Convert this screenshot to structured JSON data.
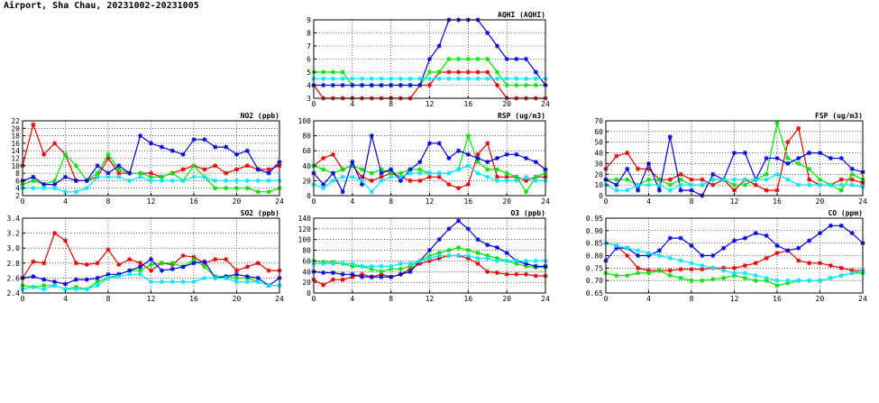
{
  "title": "Airport, Sha Chau, 20231002-20231005",
  "colors": {
    "red": "#e00000",
    "green": "#00e000",
    "blue": "#0000d8",
    "cyan": "#00e6ff"
  },
  "chart_data": [
    {
      "type": "line",
      "title": "AQHI (AQHI)",
      "x": [
        0,
        1,
        2,
        3,
        4,
        5,
        6,
        7,
        8,
        9,
        10,
        11,
        12,
        13,
        14,
        15,
        16,
        17,
        18,
        19,
        20,
        21,
        22,
        23,
        24
      ],
      "xlim": [
        0,
        24
      ],
      "xticks": [
        0,
        4,
        8,
        12,
        16,
        20,
        24
      ],
      "ylim": [
        3,
        9
      ],
      "yticks": [
        3,
        4,
        5,
        6,
        7,
        8,
        9
      ],
      "series": [
        {
          "color": "red",
          "values": [
            4,
            3,
            3,
            3,
            3,
            3,
            3,
            3,
            3,
            3,
            3,
            4,
            4,
            5,
            5,
            5,
            5,
            5,
            5,
            4,
            3,
            3,
            3,
            3,
            3
          ]
        },
        {
          "color": "green",
          "values": [
            5,
            5,
            5,
            5,
            4,
            4,
            4,
            4,
            4,
            4,
            4,
            4,
            5,
            5,
            6,
            6,
            6,
            6,
            6,
            5,
            4,
            4,
            4,
            4,
            4
          ]
        },
        {
          "color": "blue",
          "values": [
            4,
            4,
            4,
            4,
            4,
            4,
            4,
            4,
            4,
            4,
            4,
            4,
            6,
            7,
            9,
            9,
            9,
            9,
            8,
            7,
            6,
            6,
            6,
            5,
            4
          ]
        },
        {
          "color": "cyan",
          "values": [
            4.5,
            4.5,
            4.5,
            4.5,
            4.5,
            4.5,
            4.5,
            4.5,
            4.5,
            4.5,
            4.5,
            4.5,
            4.5,
            4.5,
            4.5,
            4.5,
            4.5,
            4.5,
            4.5,
            4.5,
            4.5,
            4.5,
            4.5,
            4.5,
            4.5
          ]
        }
      ]
    },
    {
      "type": "line",
      "title": "NO2 (ppb)",
      "x": [
        0,
        1,
        2,
        3,
        4,
        5,
        6,
        7,
        8,
        9,
        10,
        11,
        12,
        13,
        14,
        15,
        16,
        17,
        18,
        19,
        20,
        21,
        22,
        23,
        24
      ],
      "xlim": [
        0,
        24
      ],
      "xticks": [
        0,
        4,
        8,
        12,
        16,
        20,
        24
      ],
      "ylim": [
        2,
        22
      ],
      "yticks": [
        2,
        4,
        6,
        8,
        10,
        12,
        14,
        16,
        18,
        20,
        22
      ],
      "series": [
        {
          "color": "red",
          "values": [
            10,
            21,
            13,
            16,
            13,
            6,
            6,
            7,
            12,
            8,
            8,
            8,
            8,
            7,
            8,
            9,
            10,
            9,
            10,
            8,
            9,
            10,
            9,
            9,
            10
          ]
        },
        {
          "color": "green",
          "values": [
            5,
            6,
            5,
            6,
            13,
            10,
            6,
            8,
            13,
            9,
            8,
            8,
            7,
            7,
            8,
            6,
            10,
            7,
            4,
            4,
            4,
            4,
            3,
            3,
            4
          ]
        },
        {
          "color": "blue",
          "values": [
            6,
            7,
            5,
            5,
            7,
            6,
            6,
            10,
            8,
            10,
            8,
            18,
            16,
            15,
            14,
            13,
            17,
            17,
            15,
            15,
            13,
            14,
            9,
            8,
            11
          ]
        },
        {
          "color": "cyan",
          "values": [
            4,
            4,
            4,
            4,
            3,
            3,
            4,
            7,
            7,
            7,
            6,
            7,
            6,
            6,
            6,
            6,
            7,
            7,
            6,
            6,
            6,
            6,
            6,
            6,
            6
          ]
        }
      ]
    },
    {
      "type": "line",
      "title": "RSP (ug/m3)",
      "x": [
        0,
        1,
        2,
        3,
        4,
        5,
        6,
        7,
        8,
        9,
        10,
        11,
        12,
        13,
        14,
        15,
        16,
        17,
        18,
        19,
        20,
        21,
        22,
        23,
        24
      ],
      "xlim": [
        0,
        24
      ],
      "xticks": [
        0,
        4,
        8,
        12,
        16,
        20,
        24
      ],
      "ylim": [
        0,
        100
      ],
      "yticks": [
        0,
        20,
        40,
        60,
        80,
        100
      ],
      "series": [
        {
          "color": "red",
          "values": [
            40,
            50,
            55,
            35,
            40,
            25,
            20,
            25,
            30,
            25,
            20,
            20,
            25,
            25,
            15,
            10,
            15,
            55,
            70,
            25,
            25,
            25,
            20,
            25,
            25
          ]
        },
        {
          "color": "green",
          "values": [
            40,
            35,
            30,
            35,
            40,
            35,
            30,
            35,
            30,
            30,
            35,
            35,
            30,
            30,
            30,
            35,
            80,
            45,
            35,
            35,
            30,
            25,
            5,
            25,
            30
          ]
        },
        {
          "color": "blue",
          "values": [
            30,
            15,
            30,
            5,
            45,
            15,
            80,
            30,
            35,
            20,
            35,
            45,
            70,
            70,
            50,
            60,
            55,
            50,
            45,
            50,
            55,
            55,
            50,
            45,
            35
          ]
        },
        {
          "color": "cyan",
          "values": [
            15,
            10,
            20,
            25,
            25,
            20,
            5,
            20,
            25,
            25,
            30,
            30,
            30,
            30,
            30,
            35,
            40,
            30,
            25,
            20,
            20,
            20,
            25,
            20,
            20
          ]
        }
      ]
    },
    {
      "type": "line",
      "title": "FSP (ug/m3)",
      "x": [
        0,
        1,
        2,
        3,
        4,
        5,
        6,
        7,
        8,
        9,
        10,
        11,
        12,
        13,
        14,
        15,
        16,
        17,
        18,
        19,
        20,
        21,
        22,
        23,
        24
      ],
      "xlim": [
        0,
        24
      ],
      "xticks": [
        0,
        4,
        8,
        12,
        16,
        20,
        24
      ],
      "ylim": [
        0,
        70
      ],
      "yticks": [
        0,
        10,
        20,
        30,
        40,
        50,
        60,
        70
      ],
      "series": [
        {
          "color": "red",
          "values": [
            25,
            37,
            40,
            25,
            25,
            15,
            15,
            20,
            15,
            15,
            10,
            15,
            5,
            15,
            10,
            5,
            5,
            50,
            63,
            15,
            10,
            10,
            15,
            15,
            12
          ]
        },
        {
          "color": "green",
          "values": [
            15,
            15,
            15,
            10,
            15,
            15,
            10,
            15,
            10,
            10,
            15,
            15,
            10,
            10,
            15,
            20,
            68,
            35,
            30,
            25,
            15,
            10,
            5,
            20,
            15
          ]
        },
        {
          "color": "blue",
          "values": [
            15,
            10,
            25,
            5,
            30,
            5,
            55,
            5,
            5,
            0,
            20,
            15,
            40,
            40,
            15,
            35,
            35,
            30,
            35,
            40,
            40,
            35,
            35,
            25,
            22
          ]
        },
        {
          "color": "cyan",
          "values": [
            10,
            5,
            5,
            10,
            10,
            10,
            5,
            10,
            10,
            10,
            15,
            15,
            15,
            15,
            15,
            15,
            20,
            15,
            10,
            10,
            10,
            10,
            10,
            10,
            8
          ]
        }
      ]
    },
    {
      "type": "line",
      "title": "SO2 (ppb)",
      "x": [
        0,
        1,
        2,
        3,
        4,
        5,
        6,
        7,
        8,
        9,
        10,
        11,
        12,
        13,
        14,
        15,
        16,
        17,
        18,
        19,
        20,
        21,
        22,
        23,
        24
      ],
      "xlim": [
        0,
        24
      ],
      "xticks": [
        0,
        4,
        8,
        12,
        16,
        20,
        24
      ],
      "ylim": [
        2.4,
        3.4
      ],
      "yticks": [
        2.4,
        2.6,
        2.8,
        3.0,
        3.2,
        3.4
      ],
      "series": [
        {
          "color": "red",
          "values": [
            2.6,
            2.82,
            2.8,
            3.2,
            3.1,
            2.8,
            2.78,
            2.8,
            2.98,
            2.78,
            2.85,
            2.8,
            2.7,
            2.8,
            2.78,
            2.9,
            2.88,
            2.8,
            2.85,
            2.85,
            2.7,
            2.75,
            2.8,
            2.7,
            2.7
          ]
        },
        {
          "color": "green",
          "values": [
            2.5,
            2.48,
            2.5,
            2.5,
            2.45,
            2.48,
            2.45,
            2.55,
            2.6,
            2.65,
            2.7,
            2.7,
            2.78,
            2.8,
            2.8,
            2.75,
            2.85,
            2.75,
            2.62,
            2.62,
            2.6,
            2.6,
            2.55,
            2.5,
            2.5
          ]
        },
        {
          "color": "blue",
          "values": [
            2.6,
            2.62,
            2.58,
            2.55,
            2.52,
            2.58,
            2.58,
            2.6,
            2.65,
            2.65,
            2.7,
            2.75,
            2.85,
            2.7,
            2.72,
            2.75,
            2.8,
            2.82,
            2.6,
            2.62,
            2.65,
            2.62,
            2.6,
            2.5,
            2.6
          ]
        },
        {
          "color": "cyan",
          "values": [
            2.45,
            2.48,
            2.45,
            2.5,
            2.45,
            2.45,
            2.45,
            2.5,
            2.6,
            2.62,
            2.65,
            2.65,
            2.55,
            2.55,
            2.55,
            2.55,
            2.55,
            2.6,
            2.6,
            2.6,
            2.55,
            2.55,
            2.55,
            2.5,
            2.5
          ]
        }
      ]
    },
    {
      "type": "line",
      "title": "O3 (ppb)",
      "x": [
        0,
        1,
        2,
        3,
        4,
        5,
        6,
        7,
        8,
        9,
        10,
        11,
        12,
        13,
        14,
        15,
        16,
        17,
        18,
        19,
        20,
        21,
        22,
        23,
        24
      ],
      "xlim": [
        0,
        24
      ],
      "xticks": [
        0,
        4,
        8,
        12,
        16,
        20,
        24
      ],
      "ylim": [
        0,
        140
      ],
      "yticks": [
        0,
        20,
        40,
        60,
        80,
        100,
        120,
        140
      ],
      "series": [
        {
          "color": "red",
          "values": [
            25,
            15,
            25,
            25,
            30,
            35,
            30,
            35,
            30,
            35,
            45,
            55,
            60,
            65,
            70,
            70,
            65,
            55,
            40,
            38,
            35,
            35,
            35,
            32,
            32
          ]
        },
        {
          "color": "green",
          "values": [
            60,
            58,
            58,
            55,
            50,
            50,
            45,
            40,
            45,
            45,
            50,
            60,
            70,
            75,
            80,
            85,
            80,
            75,
            70,
            65,
            60,
            55,
            50,
            48,
            48
          ]
        },
        {
          "color": "blue",
          "values": [
            40,
            38,
            38,
            35,
            35,
            30,
            30,
            30,
            30,
            35,
            40,
            60,
            80,
            100,
            120,
            135,
            120,
            100,
            90,
            85,
            75,
            60,
            55,
            50,
            50
          ]
        },
        {
          "color": "cyan",
          "values": [
            55,
            55,
            55,
            55,
            55,
            50,
            50,
            50,
            50,
            55,
            55,
            60,
            65,
            70,
            70,
            70,
            70,
            65,
            65,
            60,
            60,
            60,
            60,
            60,
            60
          ]
        }
      ]
    },
    {
      "type": "line",
      "title": "CO (ppm)",
      "x": [
        0,
        1,
        2,
        3,
        4,
        5,
        6,
        7,
        8,
        9,
        10,
        11,
        12,
        13,
        14,
        15,
        16,
        17,
        18,
        19,
        20,
        21,
        22,
        23,
        24
      ],
      "xlim": [
        0,
        24
      ],
      "xticks": [
        0,
        4,
        8,
        12,
        16,
        20,
        24
      ],
      "ylim": [
        0.65,
        0.95
      ],
      "yticks": [
        0.65,
        0.7,
        0.75,
        0.8,
        0.85,
        0.9,
        0.95
      ],
      "series": [
        {
          "color": "red",
          "values": [
            0.85,
            0.84,
            0.8,
            0.75,
            0.74,
            0.74,
            0.74,
            0.745,
            0.745,
            0.745,
            0.75,
            0.75,
            0.75,
            0.76,
            0.77,
            0.79,
            0.81,
            0.82,
            0.78,
            0.77,
            0.77,
            0.76,
            0.75,
            0.74,
            0.74
          ]
        },
        {
          "color": "green",
          "values": [
            0.73,
            0.72,
            0.72,
            0.73,
            0.73,
            0.74,
            0.72,
            0.71,
            0.7,
            0.7,
            0.705,
            0.71,
            0.72,
            0.71,
            0.7,
            0.7,
            0.68,
            0.69,
            0.7,
            0.7,
            0.7,
            0.71,
            0.72,
            0.73,
            0.73
          ]
        },
        {
          "color": "blue",
          "values": [
            0.78,
            0.83,
            0.83,
            0.8,
            0.8,
            0.82,
            0.87,
            0.87,
            0.84,
            0.8,
            0.8,
            0.83,
            0.86,
            0.87,
            0.89,
            0.88,
            0.84,
            0.82,
            0.83,
            0.86,
            0.89,
            0.92,
            0.92,
            0.89,
            0.85
          ]
        },
        {
          "color": "cyan",
          "values": [
            0.85,
            0.84,
            0.83,
            0.82,
            0.81,
            0.8,
            0.79,
            0.78,
            0.77,
            0.76,
            0.75,
            0.74,
            0.73,
            0.73,
            0.72,
            0.71,
            0.7,
            0.7,
            0.7,
            0.7,
            0.7,
            0.71,
            0.72,
            0.73,
            0.74
          ]
        }
      ]
    }
  ]
}
